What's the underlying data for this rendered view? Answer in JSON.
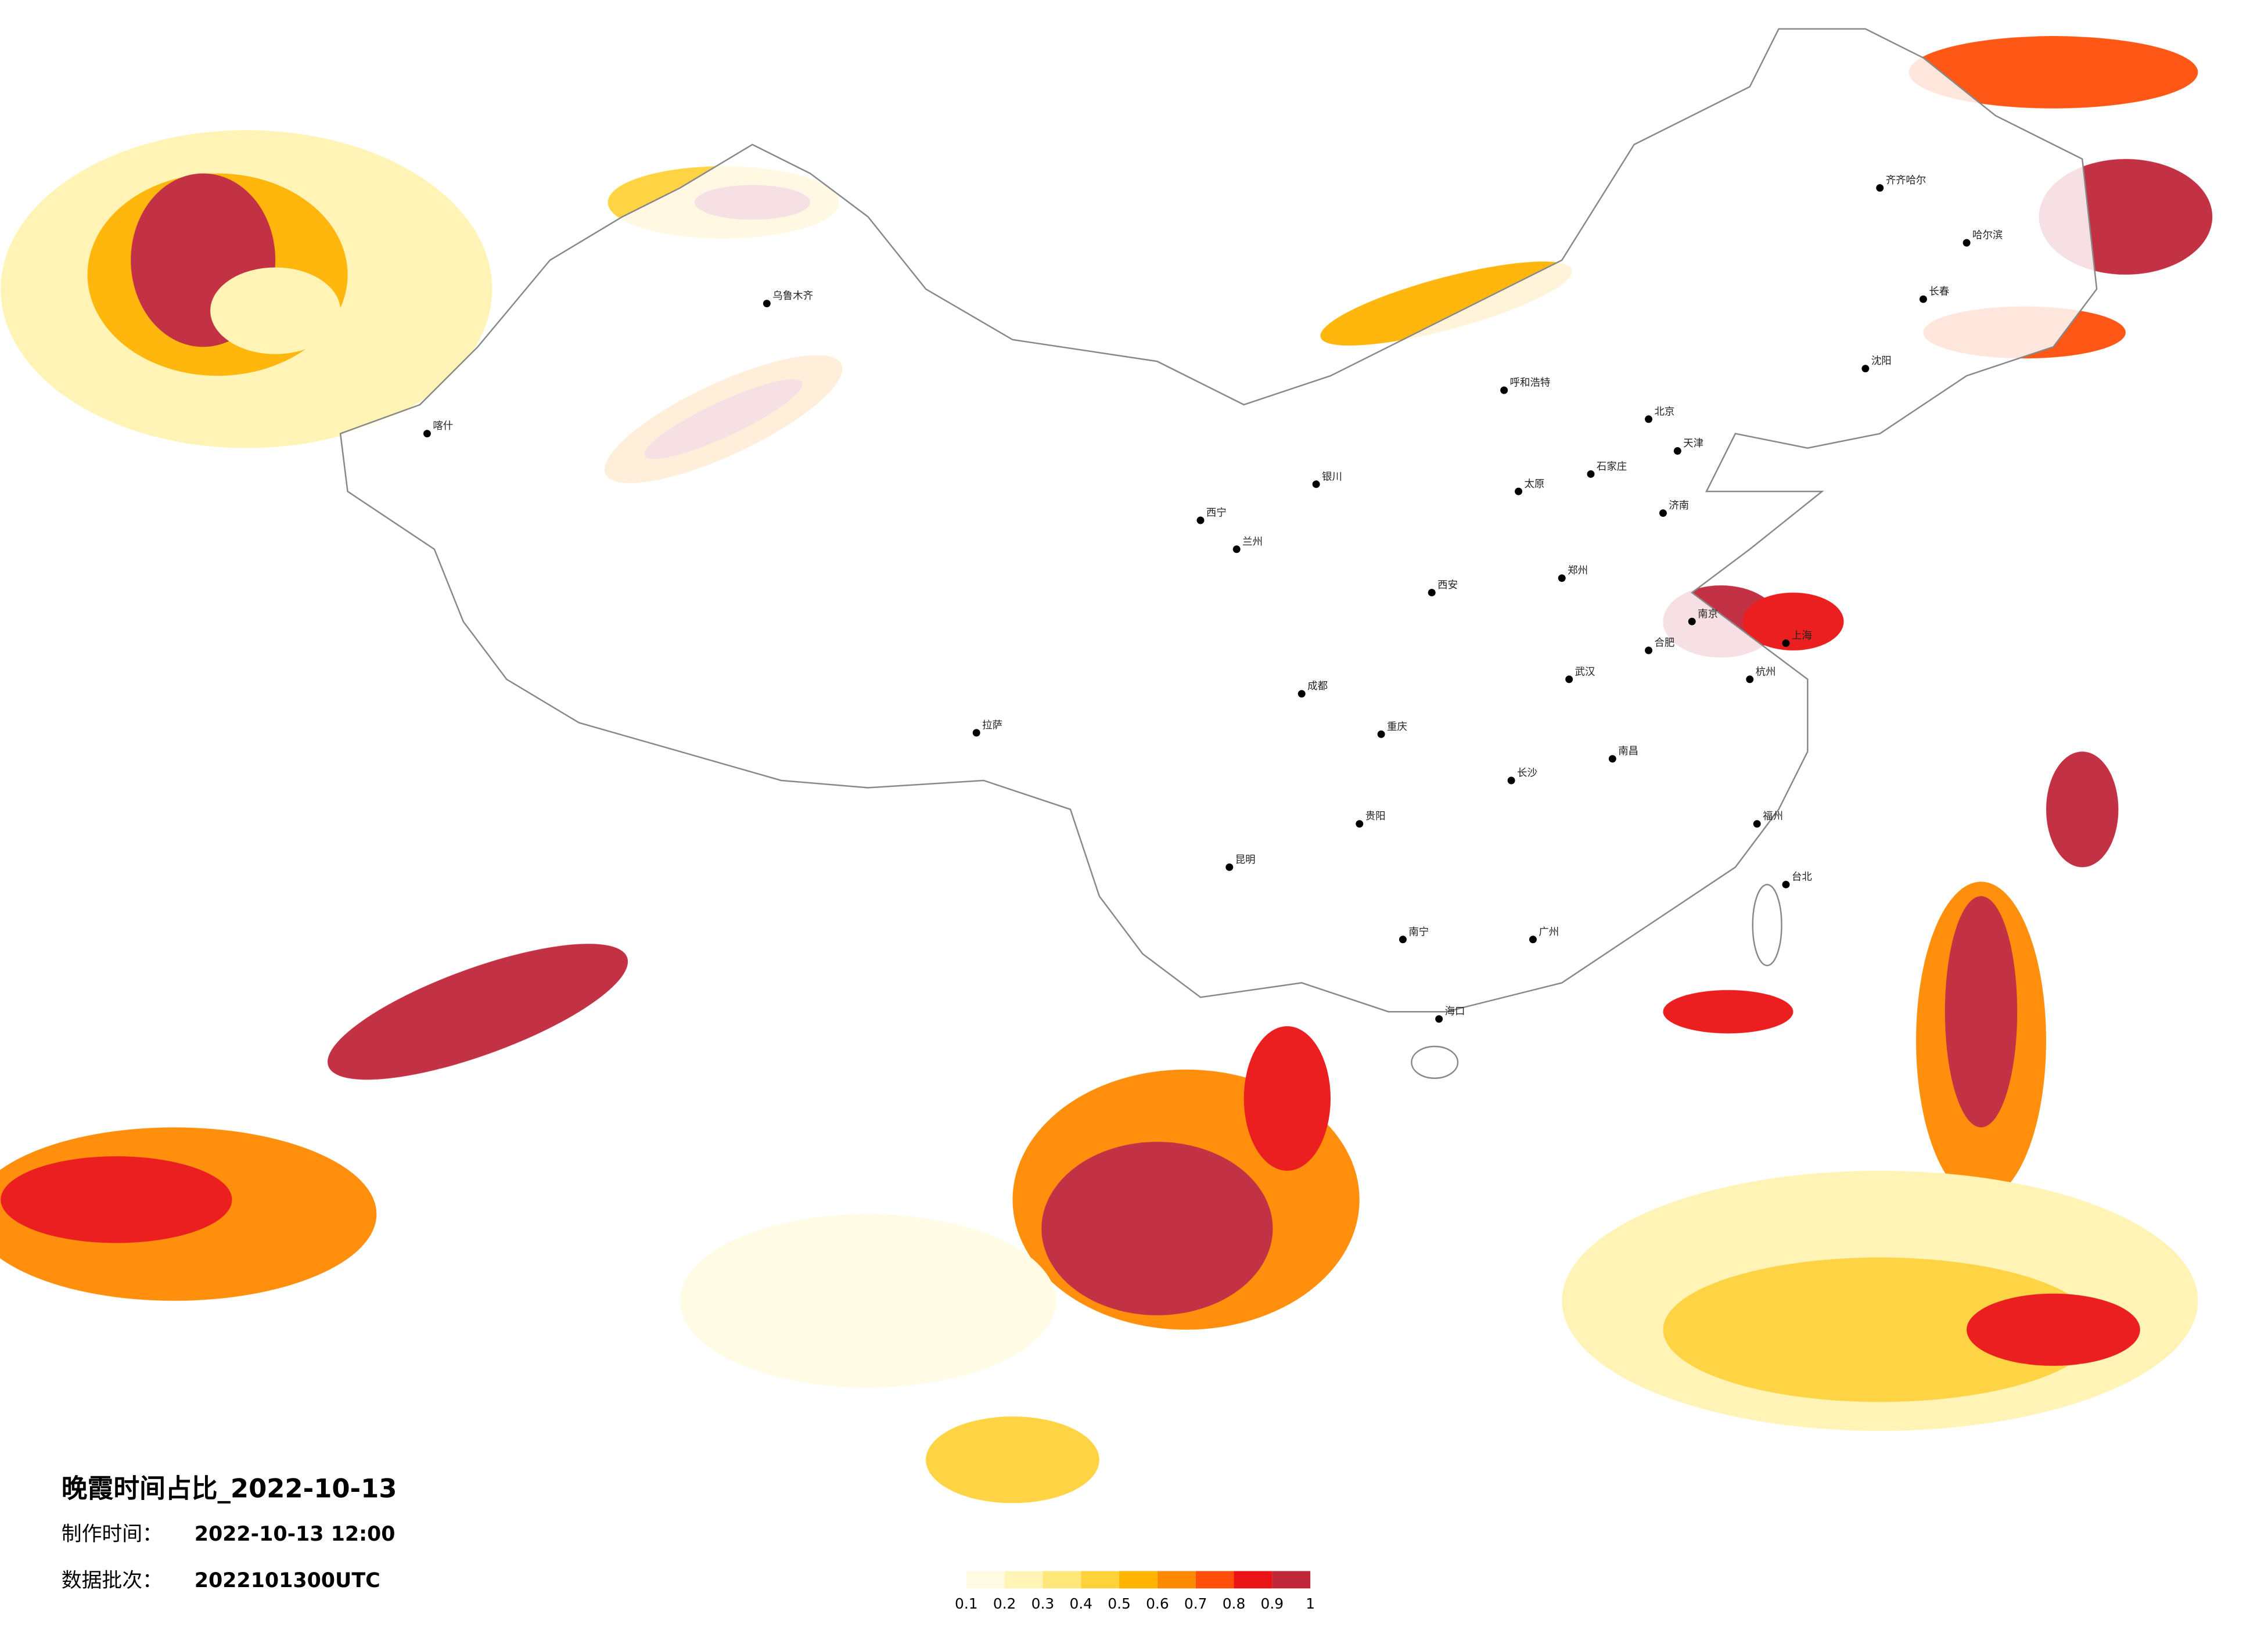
{
  "title": "晚霞时间占比_2022-10-13",
  "made_label": "制作时间：",
  "made_time": "2022-10-13 12:00",
  "batch_label": "数据批次：",
  "batch": "2022101300UTC",
  "legend": {
    "ticks": [
      0.1,
      0.2,
      0.3,
      0.4,
      0.5,
      0.6,
      0.7,
      0.8,
      0.9,
      1
    ],
    "colors": [
      "#fffbe3",
      "#fff4b3",
      "#ffe77a",
      "#ffd23a",
      "#ffb400",
      "#ff8a00",
      "#ff4f0a",
      "#ea1414",
      "#c0283a"
    ]
  },
  "cities": [
    "哈尔滨",
    "长春",
    "沈阳",
    "北京",
    "天津",
    "石家庄",
    "太原",
    "济南",
    "郑州",
    "西安",
    "兰州",
    "西宁",
    "银川",
    "呼和浩特",
    "乌鲁木齐",
    "拉萨",
    "成都",
    "重庆",
    "贵阳",
    "昆明",
    "南宁",
    "广州",
    "长沙",
    "武汉",
    "南昌",
    "合肥",
    "南京",
    "上海",
    "杭州",
    "福州",
    "台北",
    "海口",
    "喀什",
    "齐齐哈尔"
  ]
}
